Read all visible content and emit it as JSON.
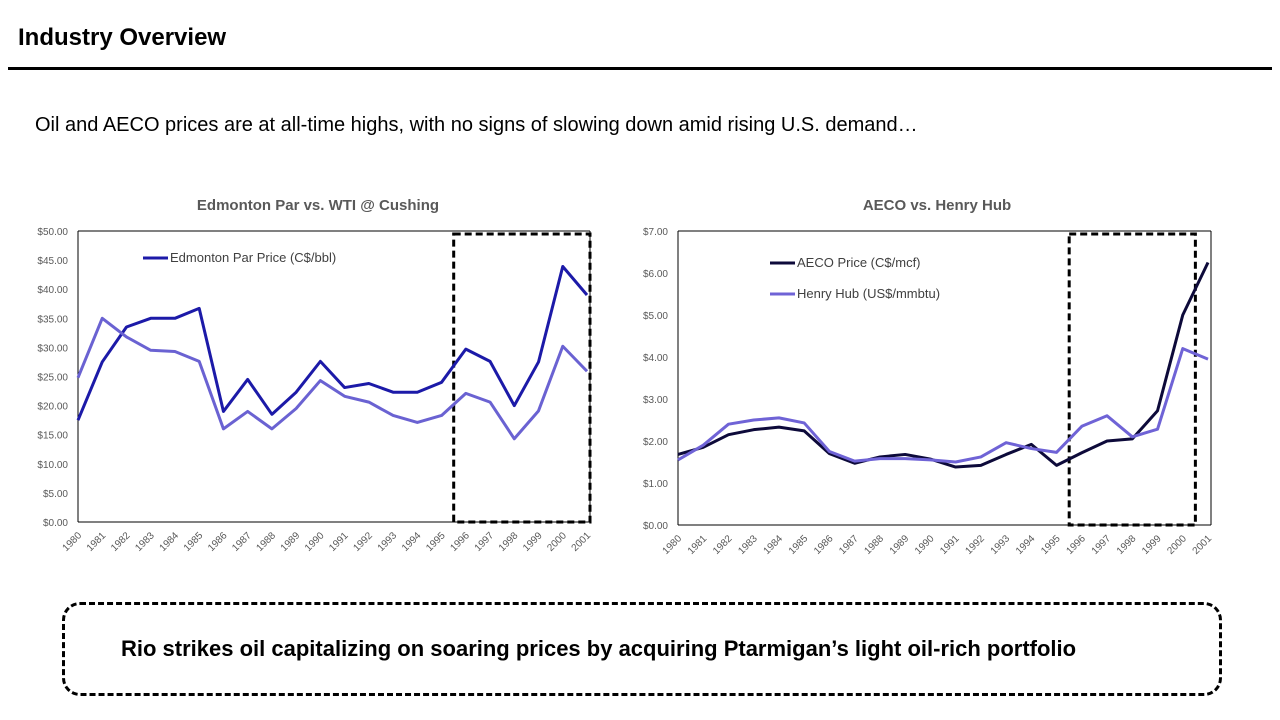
{
  "header": {
    "title": "Industry Overview"
  },
  "subtitle": "Oil and AECO prices are at all-time highs, with no signs of slowing down amid rising U.S. demand…",
  "callout": "Rio strikes oil capitalizing on soaring prices by acquiring Ptarmigan’s light oil-rich portfolio",
  "chart_data": [
    {
      "type": "line",
      "title": "Edmonton Par vs. WTI @ Cushing",
      "categories": [
        "1980",
        "1981",
        "1982",
        "1983",
        "1984",
        "1985",
        "1986",
        "1987",
        "1988",
        "1989",
        "1990",
        "1991",
        "1992",
        "1993",
        "1994",
        "1995",
        "1996",
        "1997",
        "1998",
        "1999",
        "2000",
        "2001"
      ],
      "ylim": [
        0,
        50
      ],
      "yticks": [
        "$0.00",
        "$5.00",
        "$10.00",
        "$15.00",
        "$20.00",
        "$25.00",
        "$30.00",
        "$35.00",
        "$40.00",
        "$45.00",
        "$50.00"
      ],
      "grid": false,
      "legend": "top-left",
      "highlight": [
        "1996",
        "2001"
      ],
      "series": [
        {
          "name": "Edmonton Par Price (C$/bbl)",
          "color": "#1c1aa8",
          "values": [
            17.5,
            27.5,
            33.5,
            35,
            35,
            36.7,
            19,
            24.5,
            18.5,
            22.3,
            27.6,
            23.1,
            23.8,
            22.3,
            22.3,
            24,
            29.7,
            27.6,
            20,
            27.5,
            43.9,
            39
          ]
        },
        {
          "color": "#6a62d2",
          "values": [
            24.8,
            35,
            31.8,
            29.5,
            29.3,
            27.6,
            16,
            19,
            16,
            19.5,
            24.3,
            21.6,
            20.6,
            18.3,
            17.1,
            18.3,
            22.1,
            20.6,
            14.3,
            19.1,
            30.2,
            25.9
          ]
        }
      ]
    },
    {
      "type": "line",
      "title": "AECO vs. Henry Hub",
      "categories": [
        "1980",
        "1981",
        "1982",
        "1983",
        "1984",
        "1985",
        "1986",
        "1987",
        "1988",
        "1989",
        "1990",
        "1991",
        "1992",
        "1993",
        "1994",
        "1995",
        "1996",
        "1997",
        "1998",
        "1999",
        "2000",
        "2001"
      ],
      "ylim": [
        0,
        7
      ],
      "yticks": [
        "$0.00",
        "$1.00",
        "$2.00",
        "$3.00",
        "$4.00",
        "$5.00",
        "$6.00",
        "$7.00"
      ],
      "grid": false,
      "legend": "top-left",
      "highlight": [
        "1996",
        "2000"
      ],
      "series": [
        {
          "name": "AECO Price (C$/mcf)",
          "color": "#0d0a3a",
          "values": [
            1.68,
            1.85,
            2.15,
            2.27,
            2.33,
            2.24,
            1.7,
            1.47,
            1.62,
            1.68,
            1.57,
            1.38,
            1.42,
            1.68,
            1.92,
            1.42,
            1.72,
            2.0,
            2.05,
            2.72,
            5.0,
            6.25
          ]
        },
        {
          "name": "Henry Hub (US$/mmbtu)",
          "color": "#6f63d6",
          "values": [
            1.55,
            1.9,
            2.4,
            2.5,
            2.55,
            2.43,
            1.75,
            1.52,
            1.58,
            1.58,
            1.55,
            1.5,
            1.62,
            1.96,
            1.82,
            1.73,
            2.35,
            2.6,
            2.1,
            2.28,
            4.2,
            3.95
          ]
        }
      ]
    }
  ]
}
